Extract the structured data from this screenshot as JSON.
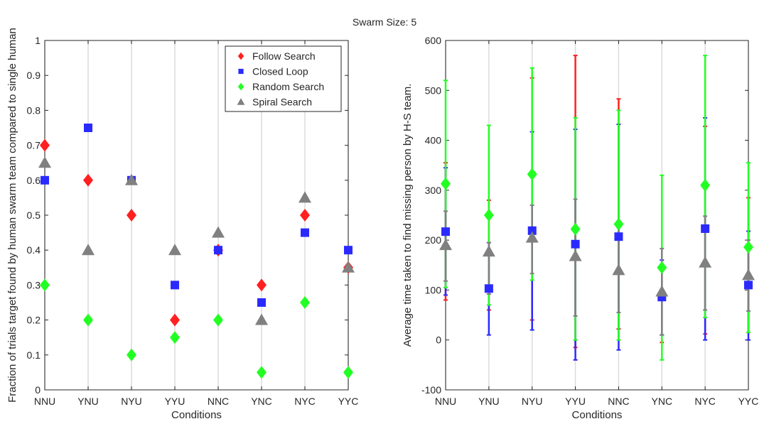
{
  "figure": {
    "title": "Swarm Size: 5"
  },
  "chart_data": [
    {
      "type": "scatter",
      "xlabel": "Conditions",
      "ylabel": "Fraction of trials target found by human swarm team compared to single human",
      "categories": [
        "NNU",
        "YNU",
        "NYU",
        "YYU",
        "NNC",
        "YNC",
        "NYC",
        "YYC"
      ],
      "ylim": [
        0,
        1
      ],
      "yticks": [
        0,
        0.1,
        0.2,
        0.3,
        0.4,
        0.5,
        0.6,
        0.7,
        0.8,
        0.9,
        1
      ],
      "grid": "vertical",
      "legend_position": "top-right",
      "series": [
        {
          "name": "Follow Search",
          "color": "#ff2020",
          "marker": "diamond",
          "values": [
            0.7,
            0.6,
            0.5,
            0.2,
            0.4,
            0.3,
            0.5,
            0.35
          ]
        },
        {
          "name": "Closed Loop",
          "color": "#2a2aff",
          "marker": "square",
          "values": [
            0.6,
            0.75,
            0.6,
            0.3,
            0.4,
            0.25,
            0.45,
            0.4
          ]
        },
        {
          "name": "Random Search",
          "color": "#22ff22",
          "marker": "diamond",
          "values": [
            0.3,
            0.2,
            0.1,
            0.15,
            0.2,
            0.05,
            0.25,
            0.05
          ]
        },
        {
          "name": "Spiral Search",
          "color": "#808080",
          "marker": "triangle",
          "values": [
            0.65,
            0.4,
            0.6,
            0.4,
            0.45,
            0.2,
            0.55,
            0.35
          ]
        }
      ]
    },
    {
      "type": "scatter",
      "xlabel": "Conditions",
      "ylabel": "Average time taken to find missing person by H-S team.",
      "categories": [
        "NNU",
        "YNU",
        "NYU",
        "YYU",
        "NNC",
        "YNC",
        "NYC",
        "YYC"
      ],
      "ylim": [
        -100,
        600
      ],
      "yticks": [
        -100,
        0,
        100,
        200,
        300,
        400,
        500,
        600
      ],
      "grid": "vertical",
      "error_bars": true,
      "series": [
        {
          "name": "Follow Search",
          "color": "#ff2020",
          "marker": "diamond",
          "values": [
            null,
            null,
            null,
            null,
            null,
            null,
            null,
            null
          ],
          "err_low": [
            80,
            60,
            40,
            -15,
            22,
            -5,
            12,
            15
          ],
          "err_high": [
            355,
            280,
            525,
            570,
            483,
            150,
            428,
            285
          ]
        },
        {
          "name": "Closed Loop",
          "color": "#2a2aff",
          "marker": "square",
          "values": [
            217,
            103,
            219,
            192,
            207,
            86,
            223,
            110
          ],
          "err_low": [
            90,
            10,
            20,
            -40,
            -20,
            10,
            0,
            0
          ],
          "err_high": [
            345,
            195,
            417,
            422,
            432,
            160,
            445,
            218
          ]
        },
        {
          "name": "Random Search",
          "color": "#22ff22",
          "marker": "diamond",
          "values": [
            313,
            250,
            332,
            222,
            232,
            145,
            310,
            186
          ],
          "err_low": [
            105,
            70,
            120,
            0,
            0,
            -40,
            45,
            15
          ],
          "err_high": [
            520,
            430,
            545,
            445,
            460,
            330,
            570,
            355
          ]
        },
        {
          "name": "Spiral Search",
          "color": "#808080",
          "marker": "triangle",
          "values": [
            190,
            177,
            205,
            168,
            140,
            97,
            155,
            130
          ],
          "err_low": [
            118,
            92,
            133,
            48,
            55,
            10,
            60,
            58
          ],
          "err_high": [
            258,
            195,
            270,
            282,
            225,
            183,
            248,
            200
          ]
        }
      ]
    }
  ]
}
